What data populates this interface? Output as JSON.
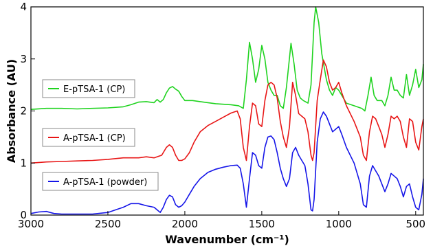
{
  "chart_data": {
    "type": "line",
    "xlabel": "Wavenumber (cm⁻¹)",
    "ylabel": "Absorbance (AU)",
    "xlim": [
      3000,
      450
    ],
    "ylim": [
      0,
      4
    ],
    "x_reversed": true,
    "grid": false,
    "legend_placement": "left",
    "x_ticks": [
      3000,
      2500,
      2000,
      1500,
      1000,
      500
    ],
    "y_ticks": [
      0,
      1,
      2,
      3,
      4
    ],
    "series": [
      {
        "name": "E-pTSA-1 (CP)",
        "color": "#1fd31f",
        "points": [
          [
            3000,
            2.03
          ],
          [
            2900,
            2.05
          ],
          [
            2800,
            2.05
          ],
          [
            2700,
            2.04
          ],
          [
            2600,
            2.05
          ],
          [
            2500,
            2.06
          ],
          [
            2400,
            2.08
          ],
          [
            2350,
            2.12
          ],
          [
            2300,
            2.17
          ],
          [
            2250,
            2.18
          ],
          [
            2200,
            2.16
          ],
          [
            2180,
            2.22
          ],
          [
            2160,
            2.17
          ],
          [
            2140,
            2.22
          ],
          [
            2120,
            2.35
          ],
          [
            2100,
            2.44
          ],
          [
            2080,
            2.47
          ],
          [
            2060,
            2.42
          ],
          [
            2040,
            2.38
          ],
          [
            2020,
            2.28
          ],
          [
            2000,
            2.2
          ],
          [
            1950,
            2.2
          ],
          [
            1900,
            2.18
          ],
          [
            1850,
            2.16
          ],
          [
            1800,
            2.14
          ],
          [
            1750,
            2.13
          ],
          [
            1700,
            2.12
          ],
          [
            1650,
            2.1
          ],
          [
            1620,
            2.05
          ],
          [
            1600,
            2.6
          ],
          [
            1580,
            3.32
          ],
          [
            1560,
            3.0
          ],
          [
            1540,
            2.55
          ],
          [
            1520,
            2.8
          ],
          [
            1500,
            3.26
          ],
          [
            1480,
            3.0
          ],
          [
            1460,
            2.55
          ],
          [
            1440,
            2.4
          ],
          [
            1420,
            2.3
          ],
          [
            1400,
            2.3
          ],
          [
            1380,
            2.1
          ],
          [
            1360,
            2.05
          ],
          [
            1340,
            2.45
          ],
          [
            1310,
            3.3
          ],
          [
            1290,
            2.9
          ],
          [
            1270,
            2.4
          ],
          [
            1250,
            2.25
          ],
          [
            1230,
            2.2
          ],
          [
            1200,
            2.15
          ],
          [
            1180,
            2.5
          ],
          [
            1160,
            3.7
          ],
          [
            1150,
            4.0
          ],
          [
            1130,
            3.7
          ],
          [
            1110,
            3.1
          ],
          [
            1080,
            2.6
          ],
          [
            1060,
            2.4
          ],
          [
            1040,
            2.3
          ],
          [
            1020,
            2.45
          ],
          [
            1000,
            2.4
          ],
          [
            980,
            2.3
          ],
          [
            950,
            2.15
          ],
          [
            900,
            2.1
          ],
          [
            850,
            2.05
          ],
          [
            830,
            2.0
          ],
          [
            810,
            2.3
          ],
          [
            790,
            2.65
          ],
          [
            770,
            2.3
          ],
          [
            750,
            2.2
          ],
          [
            720,
            2.2
          ],
          [
            700,
            2.1
          ],
          [
            680,
            2.3
          ],
          [
            660,
            2.65
          ],
          [
            640,
            2.4
          ],
          [
            620,
            2.4
          ],
          [
            600,
            2.3
          ],
          [
            580,
            2.25
          ],
          [
            560,
            2.7
          ],
          [
            540,
            2.3
          ],
          [
            520,
            2.5
          ],
          [
            500,
            2.8
          ],
          [
            480,
            2.45
          ],
          [
            460,
            2.6
          ],
          [
            450,
            2.9
          ]
        ]
      },
      {
        "name": "A-pTSA-1 (CP)",
        "color": "#e81515",
        "points": [
          [
            3000,
            1.0
          ],
          [
            2900,
            1.02
          ],
          [
            2800,
            1.03
          ],
          [
            2700,
            1.04
          ],
          [
            2600,
            1.05
          ],
          [
            2500,
            1.07
          ],
          [
            2400,
            1.1
          ],
          [
            2300,
            1.1
          ],
          [
            2250,
            1.12
          ],
          [
            2200,
            1.1
          ],
          [
            2150,
            1.15
          ],
          [
            2120,
            1.3
          ],
          [
            2100,
            1.35
          ],
          [
            2080,
            1.3
          ],
          [
            2060,
            1.15
          ],
          [
            2040,
            1.05
          ],
          [
            2020,
            1.05
          ],
          [
            2000,
            1.08
          ],
          [
            1970,
            1.2
          ],
          [
            1940,
            1.4
          ],
          [
            1900,
            1.6
          ],
          [
            1850,
            1.72
          ],
          [
            1800,
            1.8
          ],
          [
            1750,
            1.88
          ],
          [
            1700,
            1.96
          ],
          [
            1660,
            2.0
          ],
          [
            1640,
            1.85
          ],
          [
            1620,
            1.3
          ],
          [
            1600,
            1.05
          ],
          [
            1580,
            1.7
          ],
          [
            1560,
            2.15
          ],
          [
            1540,
            2.1
          ],
          [
            1520,
            1.75
          ],
          [
            1500,
            1.7
          ],
          [
            1480,
            2.2
          ],
          [
            1460,
            2.5
          ],
          [
            1440,
            2.55
          ],
          [
            1420,
            2.5
          ],
          [
            1400,
            2.25
          ],
          [
            1380,
            1.8
          ],
          [
            1360,
            1.5
          ],
          [
            1340,
            1.3
          ],
          [
            1320,
            1.7
          ],
          [
            1300,
            2.55
          ],
          [
            1280,
            2.3
          ],
          [
            1260,
            1.95
          ],
          [
            1240,
            1.9
          ],
          [
            1220,
            1.85
          ],
          [
            1200,
            1.6
          ],
          [
            1180,
            1.15
          ],
          [
            1170,
            1.05
          ],
          [
            1160,
            1.2
          ],
          [
            1140,
            2.2
          ],
          [
            1120,
            2.6
          ],
          [
            1100,
            2.98
          ],
          [
            1080,
            2.85
          ],
          [
            1060,
            2.55
          ],
          [
            1040,
            2.4
          ],
          [
            1020,
            2.45
          ],
          [
            1000,
            2.55
          ],
          [
            980,
            2.35
          ],
          [
            950,
            2.1
          ],
          [
            900,
            1.8
          ],
          [
            860,
            1.5
          ],
          [
            840,
            1.15
          ],
          [
            820,
            1.05
          ],
          [
            800,
            1.6
          ],
          [
            780,
            1.9
          ],
          [
            760,
            1.85
          ],
          [
            740,
            1.7
          ],
          [
            720,
            1.55
          ],
          [
            700,
            1.3
          ],
          [
            680,
            1.55
          ],
          [
            660,
            1.9
          ],
          [
            640,
            1.85
          ],
          [
            620,
            1.9
          ],
          [
            600,
            1.8
          ],
          [
            580,
            1.5
          ],
          [
            560,
            1.3
          ],
          [
            540,
            1.85
          ],
          [
            520,
            1.8
          ],
          [
            500,
            1.4
          ],
          [
            480,
            1.25
          ],
          [
            460,
            1.7
          ],
          [
            450,
            1.85
          ]
        ]
      },
      {
        "name": "A-pTSA-1 (powder)",
        "color": "#1515e8",
        "points": [
          [
            3000,
            0.03
          ],
          [
            2950,
            0.06
          ],
          [
            2900,
            0.07
          ],
          [
            2850,
            0.03
          ],
          [
            2800,
            0.02
          ],
          [
            2700,
            0.02
          ],
          [
            2600,
            0.02
          ],
          [
            2500,
            0.05
          ],
          [
            2450,
            0.1
          ],
          [
            2400,
            0.15
          ],
          [
            2350,
            0.22
          ],
          [
            2300,
            0.22
          ],
          [
            2250,
            0.18
          ],
          [
            2200,
            0.15
          ],
          [
            2180,
            0.1
          ],
          [
            2160,
            0.05
          ],
          [
            2140,
            0.15
          ],
          [
            2120,
            0.3
          ],
          [
            2100,
            0.38
          ],
          [
            2080,
            0.35
          ],
          [
            2060,
            0.2
          ],
          [
            2040,
            0.15
          ],
          [
            2020,
            0.18
          ],
          [
            2000,
            0.25
          ],
          [
            1970,
            0.4
          ],
          [
            1940,
            0.55
          ],
          [
            1900,
            0.7
          ],
          [
            1850,
            0.82
          ],
          [
            1800,
            0.88
          ],
          [
            1750,
            0.92
          ],
          [
            1700,
            0.95
          ],
          [
            1660,
            0.96
          ],
          [
            1640,
            0.9
          ],
          [
            1620,
            0.6
          ],
          [
            1600,
            0.15
          ],
          [
            1580,
            0.7
          ],
          [
            1560,
            1.2
          ],
          [
            1540,
            1.15
          ],
          [
            1520,
            0.95
          ],
          [
            1500,
            0.9
          ],
          [
            1480,
            1.3
          ],
          [
            1460,
            1.5
          ],
          [
            1440,
            1.52
          ],
          [
            1420,
            1.45
          ],
          [
            1400,
            1.2
          ],
          [
            1380,
            0.9
          ],
          [
            1360,
            0.7
          ],
          [
            1340,
            0.55
          ],
          [
            1320,
            0.7
          ],
          [
            1300,
            1.2
          ],
          [
            1280,
            1.3
          ],
          [
            1260,
            1.15
          ],
          [
            1240,
            1.05
          ],
          [
            1220,
            0.95
          ],
          [
            1200,
            0.6
          ],
          [
            1180,
            0.1
          ],
          [
            1170,
            0.08
          ],
          [
            1160,
            0.3
          ],
          [
            1140,
            1.4
          ],
          [
            1120,
            1.85
          ],
          [
            1100,
            1.98
          ],
          [
            1080,
            1.9
          ],
          [
            1060,
            1.75
          ],
          [
            1040,
            1.6
          ],
          [
            1020,
            1.65
          ],
          [
            1000,
            1.7
          ],
          [
            980,
            1.55
          ],
          [
            950,
            1.3
          ],
          [
            900,
            1.0
          ],
          [
            860,
            0.6
          ],
          [
            840,
            0.2
          ],
          [
            820,
            0.15
          ],
          [
            800,
            0.75
          ],
          [
            780,
            0.95
          ],
          [
            760,
            0.85
          ],
          [
            740,
            0.75
          ],
          [
            720,
            0.6
          ],
          [
            700,
            0.45
          ],
          [
            680,
            0.6
          ],
          [
            660,
            0.8
          ],
          [
            640,
            0.75
          ],
          [
            620,
            0.7
          ],
          [
            600,
            0.55
          ],
          [
            580,
            0.35
          ],
          [
            560,
            0.55
          ],
          [
            540,
            0.6
          ],
          [
            520,
            0.35
          ],
          [
            500,
            0.15
          ],
          [
            480,
            0.1
          ],
          [
            460,
            0.4
          ],
          [
            450,
            0.7
          ]
        ]
      }
    ]
  }
}
